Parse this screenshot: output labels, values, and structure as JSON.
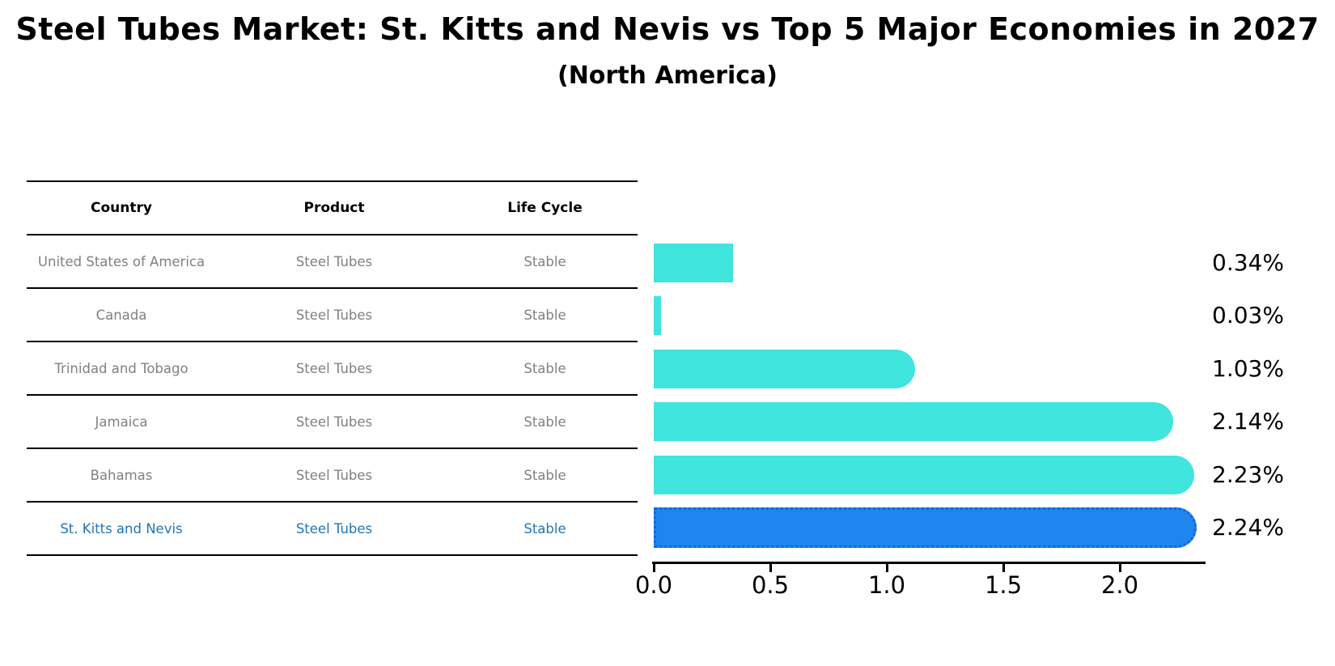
{
  "header": {
    "title": "Steel Tubes Market: St. Kitts and Nevis vs Top 5 Major Economies in 2027",
    "subtitle": "(North America)"
  },
  "table": {
    "columns": [
      "Country",
      "Product",
      "Life Cycle"
    ],
    "rows": [
      {
        "country": "United States of America",
        "product": "Steel Tubes",
        "life_cycle": "Stable"
      },
      {
        "country": "Canada",
        "product": "Steel Tubes",
        "life_cycle": "Stable"
      },
      {
        "country": "Trinidad and Tobago",
        "product": "Steel Tubes",
        "life_cycle": "Stable"
      },
      {
        "country": "Jamaica",
        "product": "Steel Tubes",
        "life_cycle": "Stable"
      },
      {
        "country": "Bahamas",
        "product": "Steel Tubes",
        "life_cycle": "Stable"
      },
      {
        "country": "St. Kitts and Nevis",
        "product": "Steel Tubes",
        "life_cycle": "Stable"
      }
    ]
  },
  "chart_data": {
    "type": "bar",
    "orientation": "horizontal",
    "title": "Steel Tubes Market: St. Kitts and Nevis vs Top 5 Major Economies in 2027 (North America)",
    "categories": [
      "United States of America",
      "Canada",
      "Trinidad and Tobago",
      "Jamaica",
      "Bahamas",
      "St. Kitts and Nevis"
    ],
    "values": [
      0.34,
      0.03,
      1.03,
      2.14,
      2.23,
      2.24
    ],
    "value_labels": [
      "0.34%",
      "0.03%",
      "1.03%",
      "2.14%",
      "2.23%",
      "2.24%"
    ],
    "x_ticks": [
      "0.0",
      "0.5",
      "1.0",
      "1.5",
      "2.0"
    ],
    "x_tick_values": [
      0.0,
      0.5,
      1.0,
      1.5,
      2.0
    ],
    "xlim": [
      0,
      2.37
    ],
    "grid": false,
    "legend": "none",
    "highlight_index": 5,
    "bar_color": "#40E5DD",
    "highlight_color": "#1E86EE",
    "highlight_border_color": "#1565D8",
    "row_text_color": "#808080",
    "highlight_text_color": "#1f77b4",
    "axis_color": "#000000"
  }
}
